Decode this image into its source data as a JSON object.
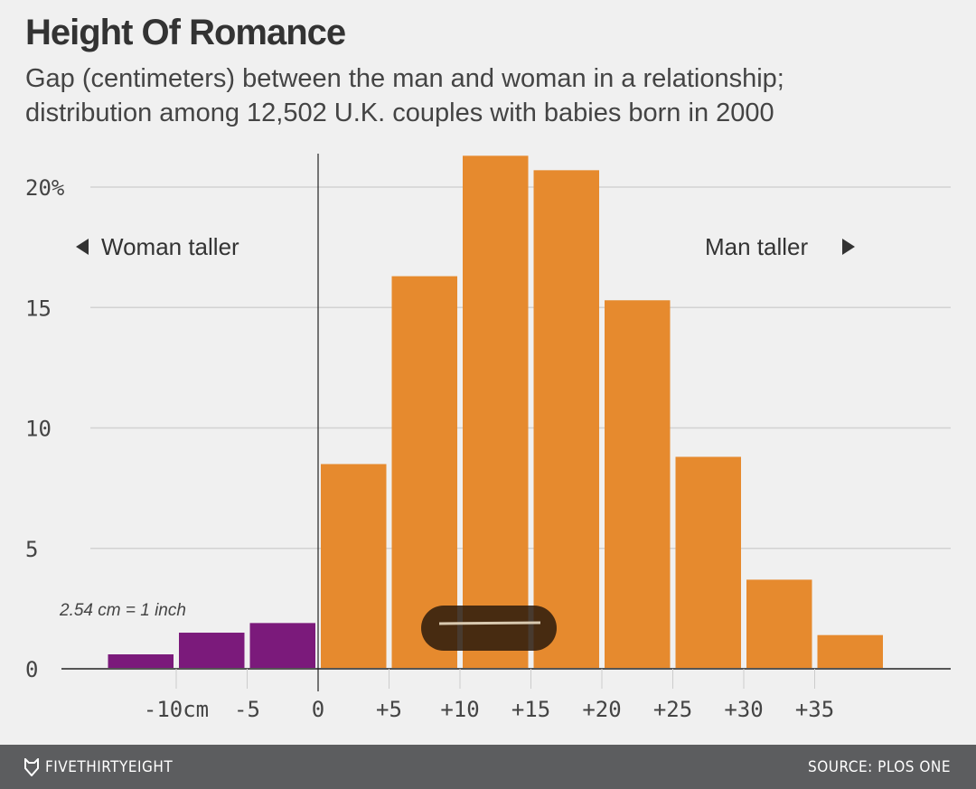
{
  "chart_data": {
    "type": "bar",
    "title": "Height Of Romance",
    "subtitle_lines": [
      "Gap (centimeters) between the man and woman in a relationship;",
      "distribution among 12,502 U.K. couples with babies born in 2000"
    ],
    "bins": [
      {
        "from": -15,
        "to": -10,
        "value": 0.6,
        "group": "woman"
      },
      {
        "from": -10,
        "to": -5,
        "value": 1.5,
        "group": "woman"
      },
      {
        "from": -5,
        "to": 0,
        "value": 1.9,
        "group": "woman"
      },
      {
        "from": 0,
        "to": 5,
        "value": 8.5,
        "group": "man"
      },
      {
        "from": 5,
        "to": 10,
        "value": 16.3,
        "group": "man"
      },
      {
        "from": 10,
        "to": 15,
        "value": 21.3,
        "group": "man"
      },
      {
        "from": 15,
        "to": 20,
        "value": 20.7,
        "group": "man"
      },
      {
        "from": 20,
        "to": 25,
        "value": 15.3,
        "group": "man"
      },
      {
        "from": 25,
        "to": 30,
        "value": 8.8,
        "group": "man"
      },
      {
        "from": 30,
        "to": 35,
        "value": 3.7,
        "group": "man"
      },
      {
        "from": 35,
        "to": 40,
        "value": 1.4,
        "group": "man"
      }
    ],
    "colors": {
      "woman": "#7b1a7b",
      "man": "#e68a2e"
    },
    "xticks": [
      {
        "v": -10,
        "label": "-10cm"
      },
      {
        "v": -5,
        "label": "-5"
      },
      {
        "v": 0,
        "label": "0"
      },
      {
        "v": 5,
        "label": "+5"
      },
      {
        "v": 10,
        "label": "+10"
      },
      {
        "v": 15,
        "label": "+15"
      },
      {
        "v": 20,
        "label": "+20"
      },
      {
        "v": 25,
        "label": "+25"
      },
      {
        "v": 30,
        "label": "+30"
      },
      {
        "v": 35,
        "label": "+35"
      }
    ],
    "yticks": [
      {
        "v": 0,
        "label": "0"
      },
      {
        "v": 5,
        "label": "5"
      },
      {
        "v": 10,
        "label": "10"
      },
      {
        "v": 15,
        "label": "15"
      },
      {
        "v": 20,
        "label": "20%"
      }
    ],
    "ylim": [
      0,
      21.5
    ],
    "xlim": [
      -15,
      40
    ],
    "grid": true,
    "annotations": {
      "woman_taller": "Woman taller",
      "man_taller": "Man taller",
      "conversion": "2.54 cm = 1 inch"
    }
  },
  "footer": {
    "brand": "FIVETHIRTYEIGHT",
    "source": "SOURCE: PLOS ONE"
  }
}
